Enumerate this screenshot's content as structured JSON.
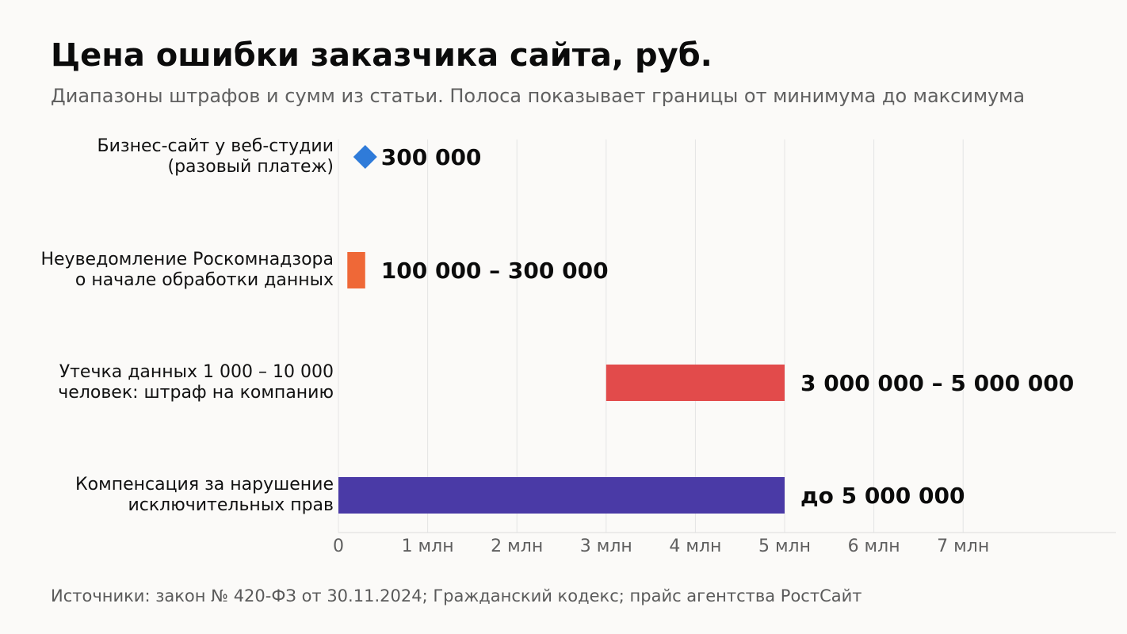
{
  "chart_data": {
    "type": "bar",
    "title": "Цена ошибки заказчика сайта, руб.",
    "subtitle": "Диапазоны штрафов и сумм из статьи. Полоса показывает границы от минимума до максимума",
    "source": "Источники: закон № 420-ФЗ от 30.11.2024; Гражданский кодекс; прайс агентства РостСайт",
    "orientation": "horizontal",
    "x_unit": "руб.",
    "xlim": [
      0,
      8700000
    ],
    "x_ticks": [
      {
        "value": 0,
        "label": "0"
      },
      {
        "value": 1000000,
        "label": "1 млн"
      },
      {
        "value": 2000000,
        "label": "2 млн"
      },
      {
        "value": 3000000,
        "label": "3 млн"
      },
      {
        "value": 4000000,
        "label": "4 млн"
      },
      {
        "value": 5000000,
        "label": "5 млн"
      },
      {
        "value": 6000000,
        "label": "6 млн"
      },
      {
        "value": 7000000,
        "label": "7 млн"
      }
    ],
    "grid": true,
    "items": [
      {
        "label_lines": [
          "Бизнес-сайт у веб-студии",
          "(разовый платеж)"
        ],
        "min": 300000,
        "max": 300000,
        "marker": "diamond",
        "value_label": "300 000",
        "color": "#2f7bd9"
      },
      {
        "label_lines": [
          "Неуведомление Роскомнадзора",
          "о начале обработки данных"
        ],
        "min": 100000,
        "max": 300000,
        "marker": "range",
        "value_label": "100 000 – 300 000",
        "color": "#ef6837"
      },
      {
        "label_lines": [
          "Утечка данных 1 000 – 10 000",
          "человек: штраф на компанию"
        ],
        "min": 3000000,
        "max": 5000000,
        "marker": "range",
        "value_label": "3 000 000 – 5 000 000",
        "color": "#e24b4b"
      },
      {
        "label_lines": [
          "Компенсация за нарушение",
          "исключительных прав"
        ],
        "min": 0,
        "max": 5000000,
        "marker": "range",
        "value_label": "до 5 000 000",
        "color": "#4a3aa6"
      }
    ]
  }
}
